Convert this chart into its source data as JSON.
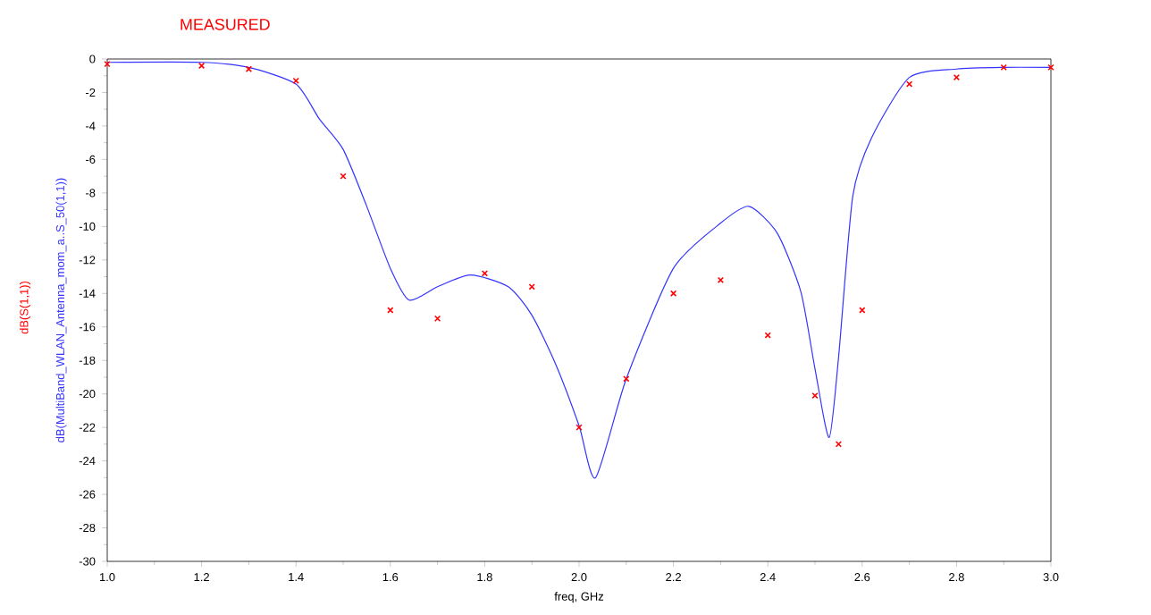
{
  "chart_data": {
    "type": "line",
    "xlabel": "freq, GHz",
    "ylabel": "dB(MultiBand_WLAN_Antenna_mom_a..S_50(1,1))",
    "annotations": [
      "dB(S(1,1))"
    ],
    "xlim": [
      1.0,
      3.0
    ],
    "xticks": [
      {
        "value": 1.0,
        "label": "1.0"
      },
      1.2,
      1.4,
      1.6,
      1.8,
      {
        "value": 2.0,
        "label": "2.0"
      },
      2.2,
      2.4,
      2.6,
      2.8,
      {
        "value": 3.0,
        "label": "3.0"
      }
    ],
    "ylim": [
      -30,
      0
    ],
    "yticks": [
      -30,
      -28,
      -26,
      -24,
      -22,
      -20,
      -18,
      -16,
      -14,
      -12,
      -10,
      -8,
      -6,
      -4,
      -2,
      0
    ],
    "grid": false,
    "series": [
      {
        "name": "MEASURED",
        "type": "scatter",
        "marker": "cross",
        "color": "#ff0000",
        "x": [
          1.0,
          1.2,
          1.3,
          1.4,
          1.5,
          1.6,
          1.7,
          1.8,
          1.9,
          2.0,
          2.1,
          2.2,
          2.3,
          2.4,
          2.5,
          2.55,
          2.6,
          2.7,
          2.8,
          2.9,
          3.0
        ],
        "values": [
          -0.3,
          -0.4,
          -0.6,
          -1.3,
          -7.0,
          -15.0,
          -15.5,
          -12.8,
          -13.6,
          -22.0,
          -19.1,
          -14.0,
          -13.2,
          -16.5,
          -20.1,
          -23.0,
          -15.0,
          -1.5,
          -1.1,
          -0.5,
          -0.5
        ]
      },
      {
        "type": "line",
        "marker": "none",
        "line_style": "solid",
        "color": "#3333ff",
        "x": [
          1.0,
          1.2,
          1.3,
          1.4,
          1.45,
          1.5,
          1.55,
          1.6,
          1.64,
          1.7,
          1.77,
          1.85,
          1.9,
          1.95,
          2.0,
          2.035,
          2.1,
          2.2,
          2.3,
          2.36,
          2.42,
          2.47,
          2.5,
          2.53,
          2.55,
          2.58,
          2.62,
          2.7,
          2.8,
          2.9,
          3.0
        ],
        "values": [
          -0.2,
          -0.2,
          -0.5,
          -1.5,
          -3.6,
          -5.4,
          -8.8,
          -12.5,
          -14.4,
          -13.6,
          -12.9,
          -13.6,
          -15.3,
          -18.2,
          -21.9,
          -25.0,
          -19.1,
          -12.5,
          -9.8,
          -8.8,
          -10.4,
          -13.9,
          -18.5,
          -22.6,
          -17.8,
          -8.2,
          -4.7,
          -1.1,
          -0.6,
          -0.5,
          -0.5
        ]
      }
    ]
  }
}
